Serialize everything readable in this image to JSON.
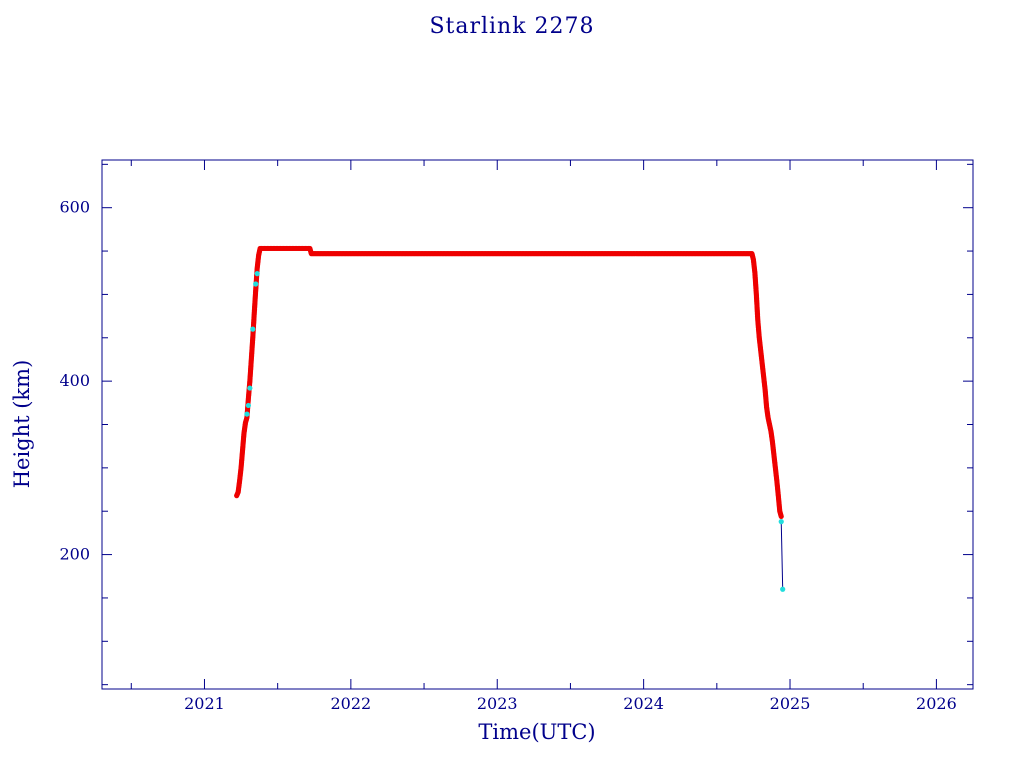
{
  "chart_data": {
    "type": "scatter",
    "title": "Starlink 2278",
    "xlabel": "Time(UTC)",
    "ylabel": "Height (km)",
    "xlim": [
      2020.3,
      2026.25
    ],
    "ylim": [
      45,
      655
    ],
    "x_ticks": [
      2021,
      2022,
      2023,
      2024,
      2025,
      2026
    ],
    "y_ticks": [
      200,
      400,
      600
    ],
    "grid": false,
    "colors": {
      "axis": "#00008b",
      "primary": "#ee0000",
      "secondary": "#22dddd",
      "connector": "#00008b"
    },
    "series": [
      {
        "values_desc": "primary",
        "points": [
          [
            2021.22,
            268
          ],
          [
            2021.23,
            272
          ],
          [
            2021.24,
            285
          ],
          [
            2021.25,
            300
          ],
          [
            2021.26,
            320
          ],
          [
            2021.27,
            340
          ],
          [
            2021.28,
            352
          ],
          [
            2021.29,
            358
          ],
          [
            2021.3,
            380
          ],
          [
            2021.31,
            400
          ],
          [
            2021.32,
            425
          ],
          [
            2021.33,
            450
          ],
          [
            2021.34,
            478
          ],
          [
            2021.35,
            505
          ],
          [
            2021.36,
            530
          ],
          [
            2021.37,
            545
          ],
          [
            2021.38,
            553
          ],
          [
            2021.45,
            553
          ],
          [
            2021.55,
            553
          ],
          [
            2021.65,
            553
          ],
          [
            2021.72,
            553
          ],
          [
            2021.73,
            547
          ],
          [
            2021.85,
            547
          ],
          [
            2022.0,
            547
          ],
          [
            2022.25,
            547
          ],
          [
            2022.5,
            547
          ],
          [
            2022.75,
            547
          ],
          [
            2023.0,
            547
          ],
          [
            2023.25,
            547
          ],
          [
            2023.5,
            547
          ],
          [
            2023.75,
            547
          ],
          [
            2024.0,
            547
          ],
          [
            2024.25,
            547
          ],
          [
            2024.5,
            547
          ],
          [
            2024.74,
            547
          ],
          [
            2024.75,
            540
          ],
          [
            2024.76,
            525
          ],
          [
            2024.77,
            500
          ],
          [
            2024.78,
            470
          ],
          [
            2024.79,
            450
          ],
          [
            2024.8,
            435
          ],
          [
            2024.81,
            420
          ],
          [
            2024.82,
            405
          ],
          [
            2024.83,
            390
          ],
          [
            2024.84,
            370
          ],
          [
            2024.85,
            358
          ],
          [
            2024.86,
            350
          ],
          [
            2024.87,
            342
          ],
          [
            2024.88,
            330
          ],
          [
            2024.89,
            315
          ],
          [
            2024.9,
            300
          ],
          [
            2024.91,
            285
          ],
          [
            2024.92,
            268
          ],
          [
            2024.93,
            250
          ],
          [
            2024.94,
            244
          ]
        ]
      },
      {
        "values_desc": "secondary",
        "points": [
          [
            2021.29,
            362
          ],
          [
            2021.3,
            372
          ],
          [
            2021.31,
            392
          ],
          [
            2021.33,
            460
          ],
          [
            2021.35,
            512
          ],
          [
            2021.36,
            524
          ],
          [
            2024.94,
            238
          ],
          [
            2024.95,
            160
          ]
        ]
      }
    ],
    "connector": [
      [
        2024.94,
        238
      ],
      [
        2024.95,
        160
      ]
    ]
  }
}
